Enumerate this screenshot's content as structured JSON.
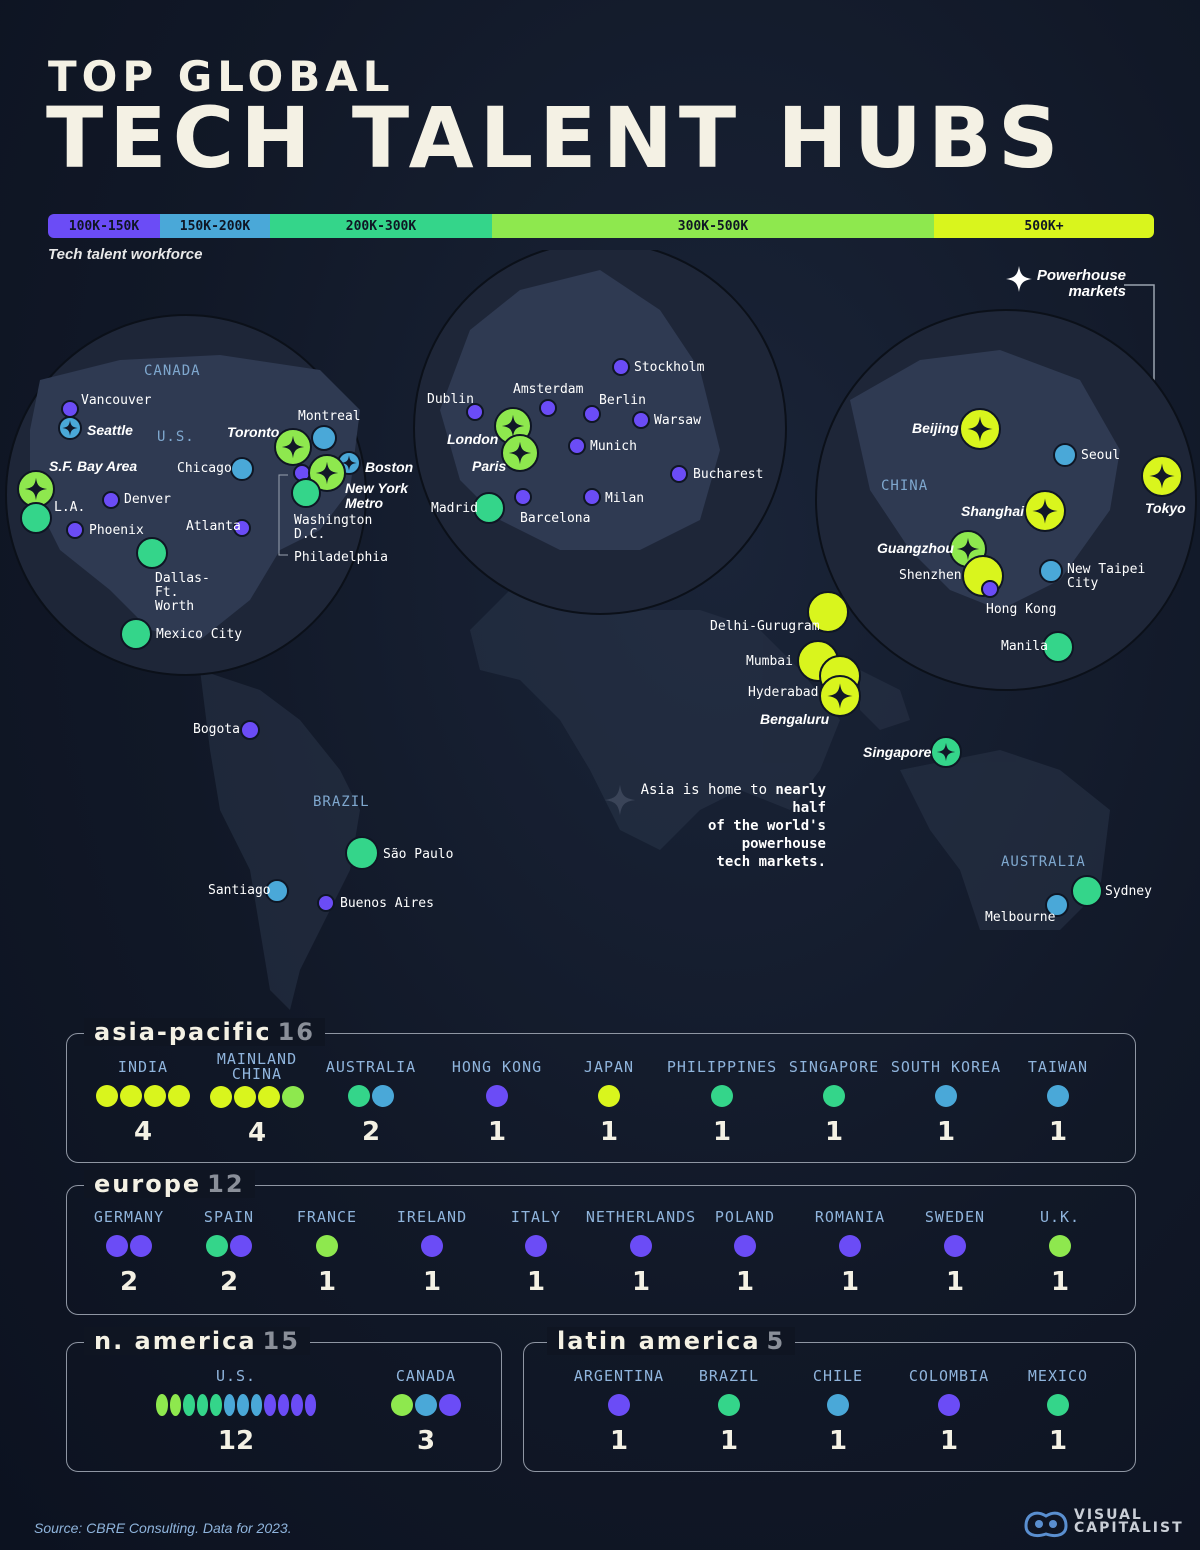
{
  "title": {
    "line1": "TOP GLOBAL",
    "line2": "TECH TALENT HUBS"
  },
  "legend": {
    "caption": "Tech talent workforce",
    "segments": [
      {
        "label": "100K-150K",
        "color": "#6b4cf6"
      },
      {
        "label": "150K-200K",
        "color": "#4aa8d8"
      },
      {
        "label": "200K-300K",
        "color": "#34d58a"
      },
      {
        "label": "300K-500K",
        "color": "#8ee84e"
      },
      {
        "label": "500K+",
        "color": "#d9f51d"
      }
    ],
    "powerhouse_label": "Powerhouse markets",
    "powerhouse_icon": "four-point-star-icon"
  },
  "map": {
    "regions": {
      "canada": "CANADA",
      "us": "U.S.",
      "china": "CHINA",
      "brazil": "BRAZIL",
      "australia": "AUSTRALIA"
    },
    "note_plain1": "Asia is home to ",
    "note_bold1": "nearly half",
    "note_bold2": "of the world's powerhouse",
    "note_bold3": "tech markets.",
    "cities": {
      "vancouver": "Vancouver",
      "seattle": "Seattle",
      "sf": "S.F. Bay Area",
      "la": "L.A.",
      "denver": "Denver",
      "phoenix": "Phoenix",
      "chicago": "Chicago",
      "toronto": "Toronto",
      "montreal": "Montreal",
      "boston": "Boston",
      "nyc": "New York Metro",
      "dc": "Washington D.C.",
      "philadelphia": "Philadelphia",
      "atlanta": "Atlanta",
      "dallas": "Dallas-Ft. Worth",
      "mexico": "Mexico City",
      "bogota": "Bogota",
      "saopaulo": "São Paulo",
      "santiago": "Santiago",
      "buenosaires": "Buenos Aires",
      "dublin": "Dublin",
      "london": "London",
      "paris": "Paris",
      "amsterdam": "Amsterdam",
      "berlin": "Berlin",
      "stockholm": "Stockholm",
      "warsaw": "Warsaw",
      "munich": "Munich",
      "madrid": "Madrid",
      "barcelona": "Barcelona",
      "milan": "Milan",
      "bucharest": "Bucharest",
      "beijing": "Beijing",
      "seoul": "Seoul",
      "tokyo": "Tokyo",
      "shanghai": "Shanghai",
      "guangzhou": "Guangzhou",
      "shenzhen": "Shenzhen",
      "hongkong": "Hong Kong",
      "taipei": "New Taipei City",
      "manila": "Manila",
      "delhi": "Delhi-Gurugram",
      "mumbai": "Mumbai",
      "hyderabad": "Hyderabad",
      "bengaluru": "Bengaluru",
      "singapore": "Singapore",
      "sydney": "Sydney",
      "melbourne": "Melbourne"
    }
  },
  "panels": {
    "asia": {
      "title": "asia-pacific",
      "count": "16",
      "countries": [
        {
          "name": "INDIA",
          "dots": [
            "#d9f51d",
            "#d9f51d",
            "#d9f51d",
            "#d9f51d"
          ],
          "count": "4"
        },
        {
          "name": "MAINLAND CHINA",
          "dots": [
            "#d9f51d",
            "#d9f51d",
            "#d9f51d",
            "#8ee84e"
          ],
          "count": "4"
        },
        {
          "name": "AUSTRALIA",
          "dots": [
            "#34d58a",
            "#4aa8d8"
          ],
          "count": "2"
        },
        {
          "name": "HONG KONG",
          "dots": [
            "#6b4cf6"
          ],
          "count": "1"
        },
        {
          "name": "JAPAN",
          "dots": [
            "#d9f51d"
          ],
          "count": "1"
        },
        {
          "name": "PHILIPPINES",
          "dots": [
            "#34d58a"
          ],
          "count": "1"
        },
        {
          "name": "SINGAPORE",
          "dots": [
            "#34d58a"
          ],
          "count": "1"
        },
        {
          "name": "SOUTH KOREA",
          "dots": [
            "#4aa8d8"
          ],
          "count": "1"
        },
        {
          "name": "TAIWAN",
          "dots": [
            "#4aa8d8"
          ],
          "count": "1"
        }
      ]
    },
    "europe": {
      "title": "europe",
      "count": "12",
      "countries": [
        {
          "name": "GERMANY",
          "dots": [
            "#6b4cf6",
            "#6b4cf6"
          ],
          "count": "2"
        },
        {
          "name": "SPAIN",
          "dots": [
            "#34d58a",
            "#6b4cf6"
          ],
          "count": "2"
        },
        {
          "name": "FRANCE",
          "dots": [
            "#8ee84e"
          ],
          "count": "1"
        },
        {
          "name": "IRELAND",
          "dots": [
            "#6b4cf6"
          ],
          "count": "1"
        },
        {
          "name": "ITALY",
          "dots": [
            "#6b4cf6"
          ],
          "count": "1"
        },
        {
          "name": "NETHERLANDS",
          "dots": [
            "#6b4cf6"
          ],
          "count": "1"
        },
        {
          "name": "POLAND",
          "dots": [
            "#6b4cf6"
          ],
          "count": "1"
        },
        {
          "name": "ROMANIA",
          "dots": [
            "#6b4cf6"
          ],
          "count": "1"
        },
        {
          "name": "SWEDEN",
          "dots": [
            "#6b4cf6"
          ],
          "count": "1"
        },
        {
          "name": "U.K.",
          "dots": [
            "#8ee84e"
          ],
          "count": "1"
        }
      ]
    },
    "namerica": {
      "title": "n. america",
      "count": "15",
      "countries": [
        {
          "name": "U.S.",
          "dots": [
            "#8ee84e",
            "#8ee84e",
            "#34d58a",
            "#34d58a",
            "#34d58a",
            "#4aa8d8",
            "#4aa8d8",
            "#4aa8d8",
            "#6b4cf6",
            "#6b4cf6",
            "#6b4cf6",
            "#6b4cf6"
          ],
          "count": "12"
        },
        {
          "name": "CANADA",
          "dots": [
            "#8ee84e",
            "#4aa8d8",
            "#6b4cf6"
          ],
          "count": "3"
        }
      ]
    },
    "latam": {
      "title": "latin america",
      "count": "5",
      "countries": [
        {
          "name": "ARGENTINA",
          "dots": [
            "#6b4cf6"
          ],
          "count": "1"
        },
        {
          "name": "BRAZIL",
          "dots": [
            "#34d58a"
          ],
          "count": "1"
        },
        {
          "name": "CHILE",
          "dots": [
            "#4aa8d8"
          ],
          "count": "1"
        },
        {
          "name": "COLOMBIA",
          "dots": [
            "#6b4cf6"
          ],
          "count": "1"
        },
        {
          "name": "MEXICO",
          "dots": [
            "#34d58a"
          ],
          "count": "1"
        }
      ]
    }
  },
  "source": "Source: CBRE Consulting. Data for 2023.",
  "logo": {
    "line1": "VISUAL",
    "line2": "CAPITALIST"
  }
}
